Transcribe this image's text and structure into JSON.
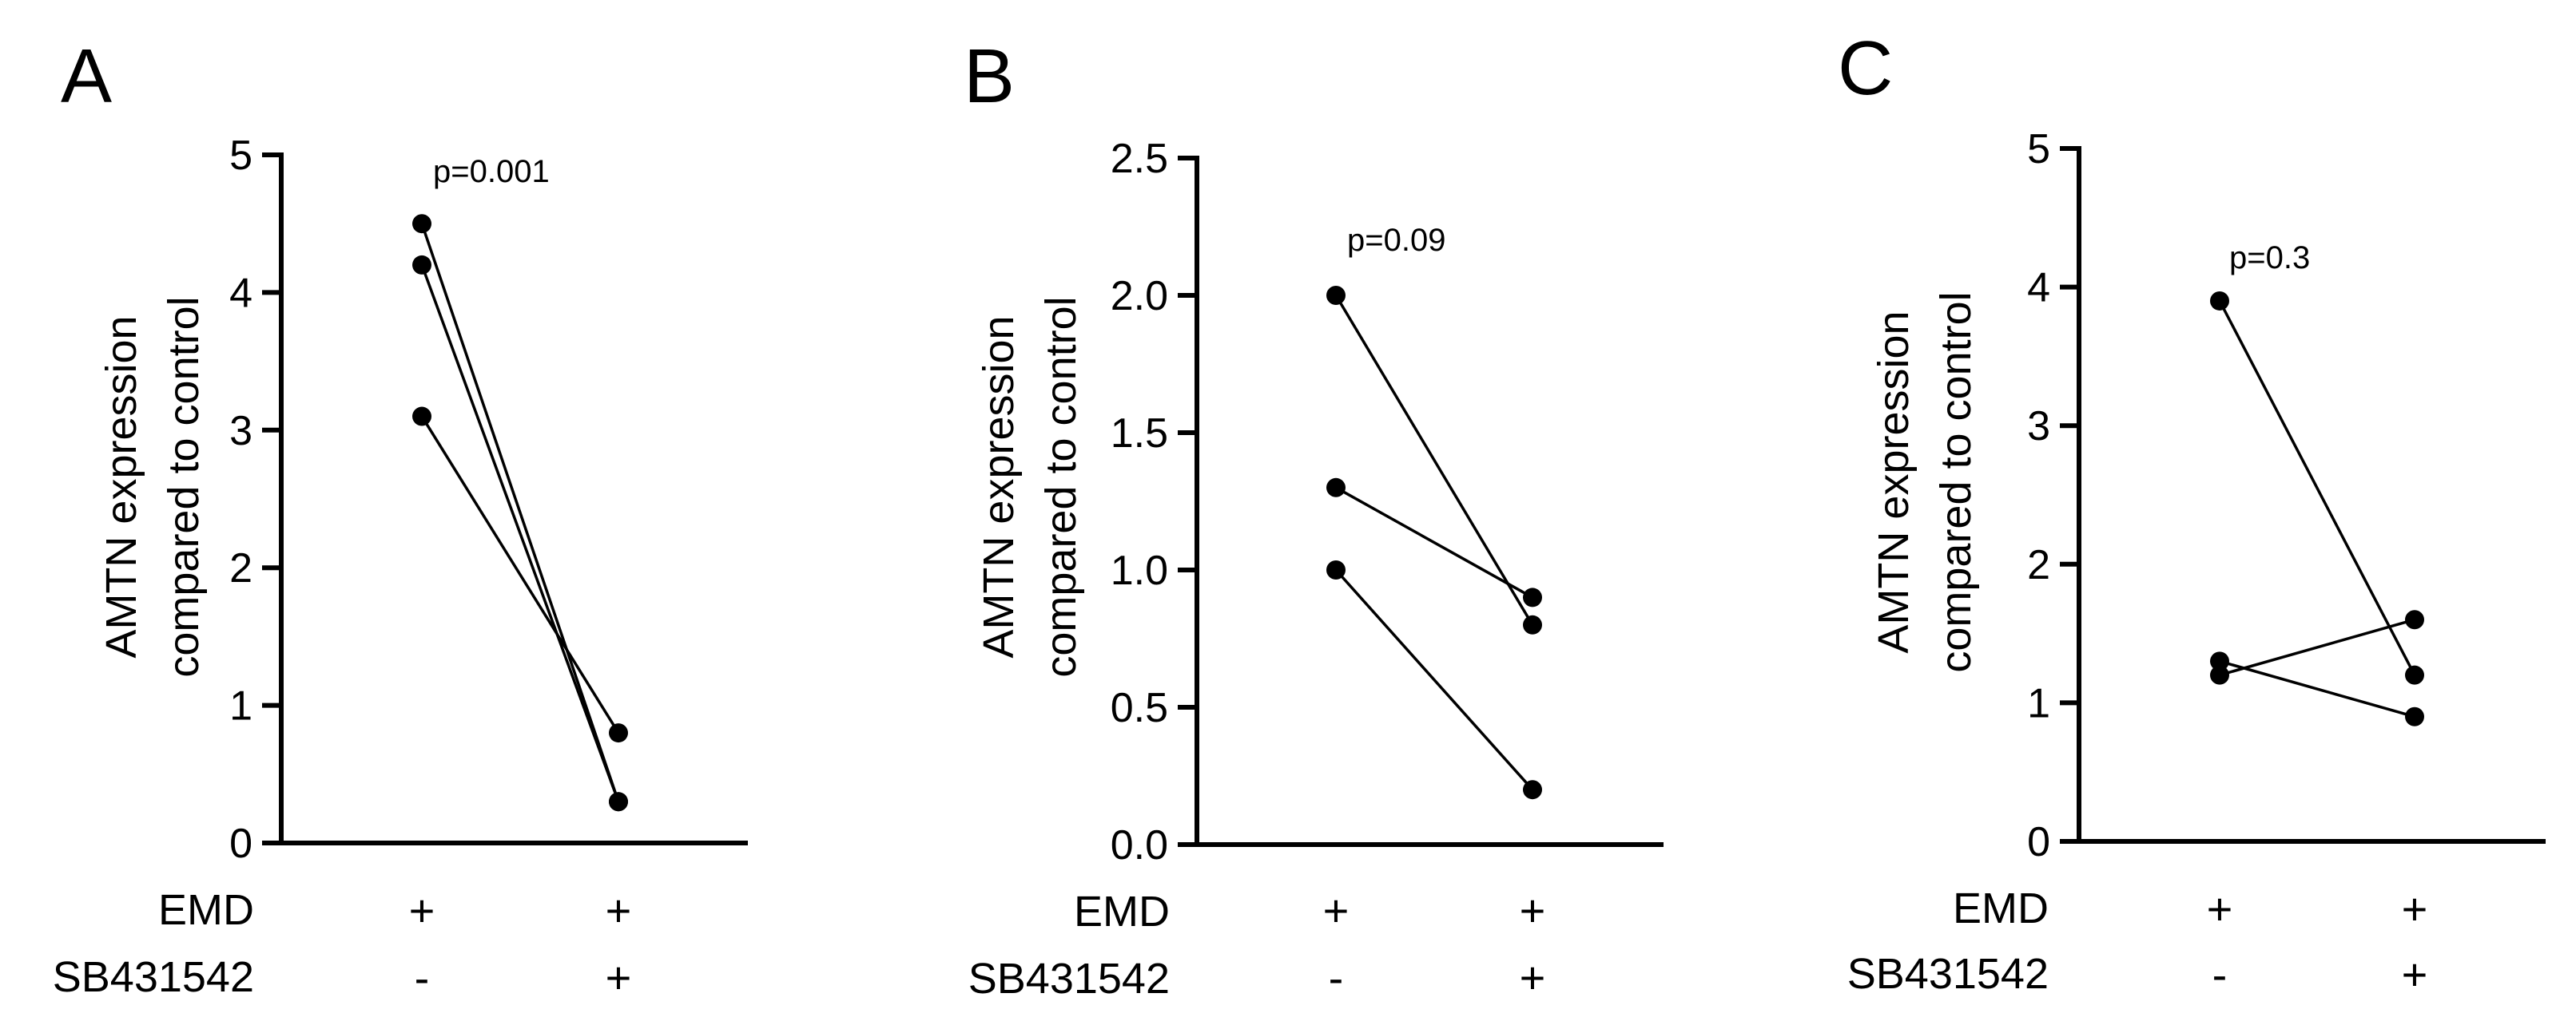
{
  "conditions": {
    "rows": [
      {
        "name": "EMD",
        "values": [
          "+",
          "+"
        ]
      },
      {
        "name": "SB431542",
        "values": [
          "-",
          "+"
        ]
      }
    ]
  },
  "chart_data": [
    {
      "type": "scatter",
      "panel_label": "A",
      "ylabel_lines": [
        "AMTN expression",
        "compared to control"
      ],
      "ylim": [
        0,
        5
      ],
      "yticks": [
        0,
        1,
        2,
        3,
        4,
        5
      ],
      "ytick_labels": [
        "0",
        "1",
        "2",
        "3",
        "4",
        "5"
      ],
      "categories": [
        "EMD",
        "EMD + SB431542"
      ],
      "annotation": "p=0.001",
      "grid": false,
      "series": [
        {
          "values": [
            4.5,
            0.3
          ]
        },
        {
          "values": [
            4.2,
            0.3
          ]
        },
        {
          "values": [
            3.1,
            0.8
          ]
        }
      ]
    },
    {
      "type": "scatter",
      "panel_label": "B",
      "ylabel_lines": [
        "AMTN expression",
        "compared to control"
      ],
      "ylim": [
        0,
        2.5
      ],
      "yticks": [
        0,
        0.5,
        1,
        1.5,
        2,
        2.5
      ],
      "ytick_labels": [
        "0.0",
        "0.5",
        "1.0",
        "1.5",
        "2.0",
        "2.5"
      ],
      "categories": [
        "EMD",
        "EMD + SB431542"
      ],
      "annotation": "p=0.09",
      "grid": false,
      "series": [
        {
          "values": [
            2.0,
            0.8
          ]
        },
        {
          "values": [
            1.3,
            0.9
          ]
        },
        {
          "values": [
            1.0,
            0.2
          ]
        }
      ]
    },
    {
      "type": "scatter",
      "panel_label": "C",
      "ylabel_lines": [
        "AMTN expression",
        "compared to control"
      ],
      "ylim": [
        0,
        5
      ],
      "yticks": [
        0,
        1,
        2,
        3,
        4,
        5
      ],
      "ytick_labels": [
        "0",
        "1",
        "2",
        "3",
        "4",
        "5"
      ],
      "categories": [
        "EMD",
        "EMD + SB431542"
      ],
      "annotation": "p=0.3",
      "grid": false,
      "series": [
        {
          "values": [
            3.9,
            1.2
          ]
        },
        {
          "values": [
            1.3,
            0.9
          ]
        },
        {
          "values": [
            1.2,
            1.6
          ]
        }
      ]
    }
  ]
}
